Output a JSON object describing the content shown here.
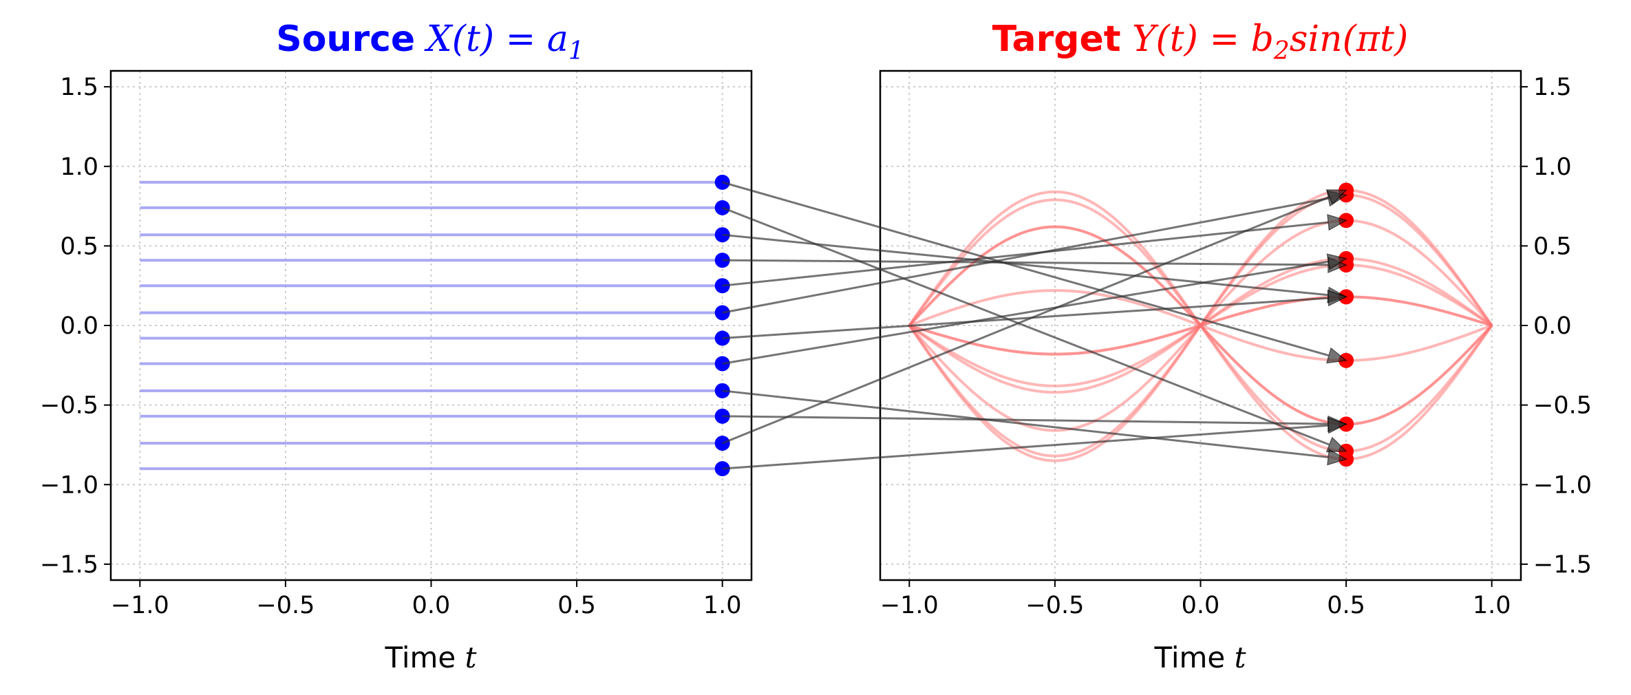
{
  "chart_data": [
    {
      "type": "line",
      "panel": "source",
      "title": {
        "bold": "Source",
        "math": "X(t) = a",
        "math_sub": "1"
      },
      "title_color": "#0000ff",
      "xlabel": {
        "text": "Time ",
        "math": "t"
      },
      "ylabel": "",
      "xlim": [
        -1.1,
        1.1
      ],
      "ylim": [
        -1.6,
        1.6
      ],
      "xticks": [
        -1.0,
        -0.5,
        0.0,
        0.5,
        1.0
      ],
      "xtick_labels": [
        "−1.0",
        "−0.5",
        "0.0",
        "0.5",
        "1.0"
      ],
      "yticks": [
        -1.5,
        -1.0,
        -0.5,
        0.0,
        0.5,
        1.0,
        1.5
      ],
      "ytick_labels": [
        "−1.5",
        "−1.0",
        "−0.5",
        "0.0",
        "0.5",
        "1.0",
        "1.5"
      ],
      "yaxis_side": "left",
      "grid": true,
      "line_color": "#8c8cf0",
      "marker_color": "#0000ff",
      "t_range": [
        -1.0,
        1.0
      ],
      "marker_t": 1.0,
      "a1_values": [
        0.9,
        0.74,
        0.57,
        0.41,
        0.25,
        0.08,
        -0.08,
        -0.24,
        -0.41,
        -0.57,
        -0.74,
        -0.9
      ]
    },
    {
      "type": "line",
      "panel": "target",
      "title": {
        "bold": "Target",
        "math": "Y(t) = b",
        "math_sub": "2",
        "math_tail": "sin(πt)"
      },
      "title_color": "#ff0000",
      "xlabel": {
        "text": "Time ",
        "math": "t"
      },
      "ylabel": "",
      "xlim": [
        -1.1,
        1.1
      ],
      "ylim": [
        -1.6,
        1.6
      ],
      "xticks": [
        -1.0,
        -0.5,
        0.0,
        0.5,
        1.0
      ],
      "xtick_labels": [
        "−1.0",
        "−0.5",
        "0.0",
        "0.5",
        "1.0"
      ],
      "yticks": [
        -1.5,
        -1.0,
        -0.5,
        0.0,
        0.5,
        1.0,
        1.5
      ],
      "ytick_labels": [
        "−1.5",
        "−1.0",
        "−0.5",
        "0.0",
        "0.5",
        "1.0",
        "1.5"
      ],
      "yaxis_side": "right",
      "grid": true,
      "line_color": "#ff6f6f",
      "marker_color": "#ff0000",
      "t_range": [
        -1.0,
        1.0
      ],
      "marker_t": 0.5,
      "b2_values": [
        0.85,
        0.82,
        0.66,
        0.42,
        0.38,
        0.18,
        0.18,
        -0.22,
        -0.62,
        -0.79,
        -0.84,
        -0.62
      ]
    }
  ],
  "mapping_arrows": {
    "color": "#333333",
    "from": "source point at t = 1.0",
    "to": "target point at t = 0.5",
    "pairs": [
      [
        0,
        7
      ],
      [
        1,
        9
      ],
      [
        2,
        6
      ],
      [
        3,
        4
      ],
      [
        4,
        2
      ],
      [
        5,
        1
      ],
      [
        6,
        5
      ],
      [
        7,
        3
      ],
      [
        8,
        10
      ],
      [
        9,
        11
      ],
      [
        10,
        0
      ],
      [
        11,
        8
      ]
    ]
  }
}
